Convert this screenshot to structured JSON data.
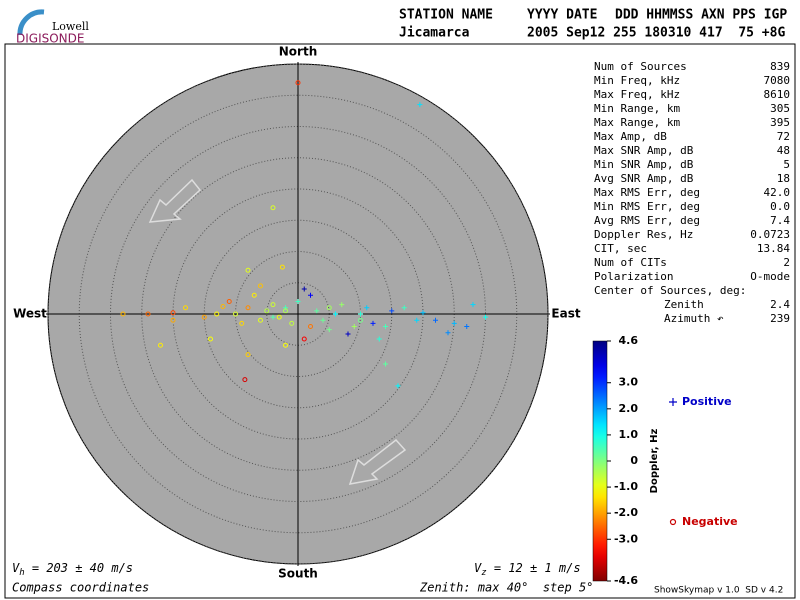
{
  "chart_data": {
    "type": "skymap",
    "logo": {
      "top": "Lowell",
      "bottom": "DIGISONDE"
    },
    "header": {
      "columns": [
        "STATION NAME",
        "YYYY DATE",
        "DDD HHMMSS AXN PPS IGP"
      ],
      "values": [
        "Jicamarca",
        "2005 Sep12 255 180310 417  75 +8G"
      ]
    },
    "compass": {
      "north": "North",
      "south": "South",
      "west": "West",
      "east": "East"
    },
    "rlim": [
      0,
      40
    ],
    "rticks": [
      5,
      10,
      15,
      20,
      25,
      30,
      35,
      40
    ],
    "plot_color": "#a8a8a8",
    "colormap": "jet_r",
    "clim": [
      -4.6,
      4.6
    ],
    "colorbar_label": "Doppler, Hz",
    "colorbar_ticks": [
      4.6,
      {
        "value": 3,
        "label": "3.0"
      },
      {
        "value": 2,
        "label": "2.0"
      },
      {
        "value": 1,
        "label": "1.0"
      },
      0,
      {
        "value": -1,
        "label": "-1.0"
      },
      {
        "value": -2,
        "label": "-2.0"
      },
      {
        "value": -3,
        "label": "-3.0"
      },
      -4.6
    ],
    "stats": [
      [
        "Num of Sources",
        "839"
      ],
      [
        "Min Freq, kHz",
        "7080"
      ],
      [
        "Max Freq, kHz",
        "8610"
      ],
      [
        "Min Range, km",
        "305"
      ],
      [
        "Max Range, km",
        "395"
      ],
      [
        "Max Amp, dB",
        "72"
      ],
      [
        "Max SNR Amp, dB",
        "48"
      ],
      [
        "Min SNR Amp, dB",
        "5"
      ],
      [
        "Avg SNR Amp, dB",
        "18"
      ],
      [
        "Max RMS Err, deg",
        "42.0"
      ],
      [
        "Min RMS Err, deg",
        "0.0"
      ],
      [
        "Avg RMS Err, deg",
        "7.4"
      ],
      [
        "Doppler Res, Hz",
        "0.0723"
      ],
      [
        "CIT, sec",
        "13.84"
      ],
      [
        "Num of CITs",
        "2"
      ],
      [
        "Polarization",
        "O-mode"
      ]
    ],
    "center_title": "Center of Sources, deg:",
    "center": [
      [
        "Zenith",
        "2.4"
      ],
      [
        "Azimuth ↶",
        "239"
      ]
    ],
    "series": [
      {
        "name": "Positive",
        "marker": "+",
        "color": "#0000c8",
        "x": [
          22,
          25,
          28,
          30,
          19,
          15,
          12,
          8,
          1,
          2,
          6,
          10,
          14,
          17,
          4,
          7,
          3,
          -2,
          13,
          14,
          16,
          24,
          27,
          11,
          20,
          19.5,
          9,
          5,
          -4,
          0
        ],
        "y": [
          -1,
          -1.5,
          1.5,
          -0.5,
          -1,
          0.5,
          -1.5,
          -3.2,
          4,
          3,
          0,
          0,
          -2,
          1,
          -1,
          1.5,
          0.5,
          1,
          -4,
          -8,
          -11.5,
          -3,
          -2,
          1,
          0.2,
          33.5,
          -2,
          -2.5,
          -0.5,
          2
        ],
        "doppler": [
          2.5,
          1.8,
          1.5,
          1,
          1.5,
          2.8,
          3.2,
          4,
          4.2,
          3.5,
          1.2,
          0.8,
          0.5,
          0.6,
          0.2,
          -0.2,
          0.3,
          0.5,
          0.8,
          0.3,
          1.2,
          2.2,
          2.4,
          1.6,
          1.7,
          1.4,
          -0.3,
          0.1,
          0.4,
          0.6
        ]
      },
      {
        "name": "Negative",
        "marker": "o",
        "color": "#c80000",
        "x": [
          -28,
          -24,
          -20,
          -18,
          -15,
          -13,
          -12,
          -10,
          -9,
          -8,
          -7,
          -6,
          -5,
          -4,
          -3,
          -2,
          -1,
          1,
          2,
          -8,
          -2.5,
          -4,
          -8,
          -2,
          -8.5,
          0,
          -22,
          -14,
          -6,
          -11,
          5,
          10,
          -20
        ],
        "y": [
          0,
          0,
          0.2,
          1,
          -0.5,
          0,
          1.2,
          0,
          -1.5,
          1,
          3,
          -1,
          0.5,
          1.5,
          -0.5,
          0.5,
          -1.5,
          -4,
          -2,
          7,
          7.5,
          17,
          -6.5,
          -5,
          -10.5,
          37,
          -5,
          -4,
          4.5,
          2,
          1,
          -1,
          -1
        ],
        "doppler": [
          -1.8,
          -2.5,
          -2.8,
          -1.5,
          -2,
          -1.2,
          -1.8,
          -0.8,
          -1.5,
          -2.2,
          -1.3,
          -0.9,
          -0.5,
          -0.7,
          -1,
          -0.4,
          -0.6,
          -3.5,
          -2.4,
          -0.9,
          -1.4,
          -0.8,
          -1.6,
          -1.1,
          -3.8,
          -3,
          -1.3,
          -1.1,
          -1.7,
          -2.6,
          -0.3,
          0.1,
          -1.9
        ]
      }
    ],
    "vh": {
      "symbol": "V",
      "sub": "h",
      "text": " = 203 ± 40 m/s"
    },
    "vz": {
      "symbol": "V",
      "sub": "z",
      "text": " = 12 ± 1 m/s"
    },
    "footer_left": "Compass coordinates",
    "footer_zenith": "Zenith: max 40°  step 5°",
    "footer_version": "ShowSkymap v 1.0  SD v 4.2"
  }
}
